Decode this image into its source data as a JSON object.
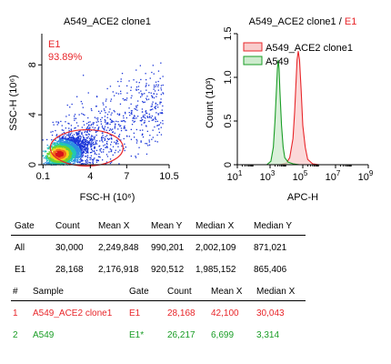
{
  "colors": {
    "red": "#e8262a",
    "green": "#199d25",
    "red_fill": "#f9cccc",
    "green_fill": "#cdebcd",
    "axis": "#000000"
  },
  "chart_data": [
    {
      "type": "scatter",
      "title": "A549_ACE2 clone1",
      "xlabel": "FSC-H (10⁶)",
      "ylabel": "SSC-H (10⁶)",
      "xlim": [
        0,
        10.5
      ],
      "ylim": [
        0,
        10.5
      ],
      "x_ticks": [
        {
          "value": 0.1,
          "label": "0.1"
        },
        {
          "value": 4,
          "label": "4"
        },
        {
          "value": 7,
          "label": "7"
        },
        {
          "value": 10.5,
          "label": "10.5"
        }
      ],
      "y_ticks": [
        {
          "value": 0,
          "label": "0"
        },
        {
          "value": 4,
          "label": "4"
        },
        {
          "value": 8,
          "label": "8"
        }
      ],
      "density_colormap": "pseudocolor (blue to red)",
      "gate": {
        "name": "E1",
        "percent": "93.89%",
        "shape": "ellipse",
        "center": [
          3.7,
          1.35
        ],
        "radii": [
          3.0,
          1.45
        ]
      },
      "population": {
        "center": [
          1.4,
          0.9
        ],
        "spread": [
          0.9,
          0.6
        ]
      }
    },
    {
      "type": "histogram",
      "title_main": "A549_ACE2 clone1 /",
      "title_gate": "E1",
      "xlabel": "APC-H",
      "ylabel": "Count (10³)",
      "x_scale": "log",
      "xlim_log10": [
        1,
        9
      ],
      "ylim": [
        0,
        1.5
      ],
      "x_ticks": [
        {
          "value": 1,
          "base": "10",
          "exp": "1"
        },
        {
          "value": 3,
          "base": "10",
          "exp": "3"
        },
        {
          "value": 5,
          "base": "10",
          "exp": "5"
        },
        {
          "value": 7,
          "base": "10",
          "exp": "7"
        },
        {
          "value": 9,
          "base": "10",
          "exp": "9"
        }
      ],
      "y_ticks": [
        {
          "value": 0,
          "label": "0"
        },
        {
          "value": 0.5,
          "label": "0.5"
        },
        {
          "value": 1.0,
          "label": "1.0"
        },
        {
          "value": 1.5,
          "label": "1.5"
        }
      ],
      "legend_position": "top-right",
      "series": [
        {
          "name": "A549_ACE2 clone1",
          "color_key": "red",
          "x_log10": [
            3.6,
            4.0,
            4.2,
            4.4,
            4.5,
            4.6,
            4.65,
            4.72,
            4.8,
            4.9,
            5.0,
            5.15,
            5.3,
            5.6,
            6.0
          ],
          "y": [
            0,
            0.02,
            0.08,
            0.3,
            0.6,
            1.0,
            1.2,
            1.3,
            1.2,
            0.85,
            0.45,
            0.2,
            0.06,
            0.01,
            0
          ]
        },
        {
          "name": "A549",
          "color_key": "green",
          "x_log10": [
            2.8,
            3.05,
            3.2,
            3.3,
            3.4,
            3.45,
            3.5,
            3.55,
            3.6,
            3.7,
            3.8,
            3.9,
            4.1,
            4.4,
            4.8
          ],
          "y": [
            0,
            0.04,
            0.2,
            0.5,
            0.9,
            1.1,
            1.2,
            1.1,
            0.85,
            0.45,
            0.2,
            0.08,
            0.03,
            0.01,
            0
          ]
        }
      ]
    }
  ],
  "stats_table": {
    "columns": [
      "Gate",
      "Count",
      "Mean X",
      "Mean Y",
      "Median X",
      "Median Y"
    ],
    "rows": [
      [
        "All",
        "30,000",
        "2,249,848",
        "990,201",
        "2,002,109",
        "871,021"
      ],
      [
        "E1",
        "28,168",
        "2,176,918",
        "920,512",
        "1,985,152",
        "865,406"
      ]
    ]
  },
  "sample_table": {
    "columns": [
      "#",
      "Sample",
      "Gate",
      "Count",
      "Mean X",
      "Median X"
    ],
    "rows": [
      {
        "color_key": "red",
        "cells": [
          "1",
          "A549_ACE2 clone1",
          "E1",
          "28,168",
          "42,100",
          "30,043"
        ]
      },
      {
        "color_key": "green",
        "cells": [
          "2",
          "A549",
          "E1*",
          "26,217",
          "6,699",
          "3,314"
        ]
      }
    ]
  }
}
